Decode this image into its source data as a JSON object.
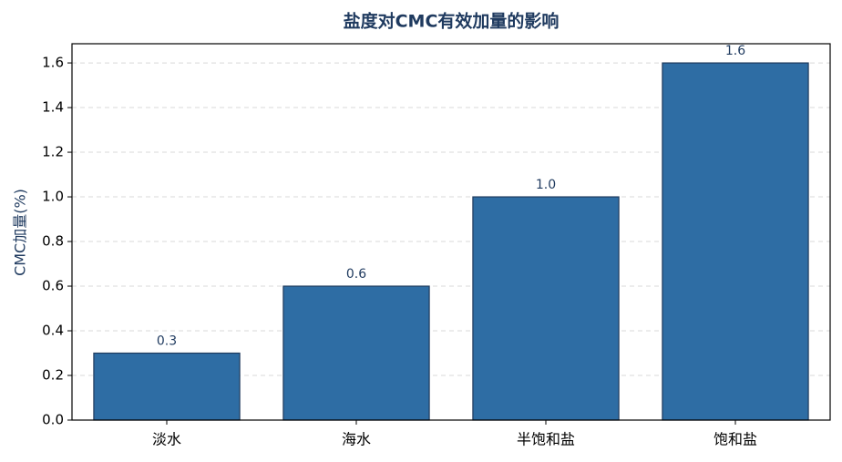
{
  "chart_data": {
    "type": "bar",
    "title": "盐度对CMC有效加量的影响",
    "y_label": "CMC加量(%)",
    "categories": [
      "淡水",
      "海水",
      "半饱和盐",
      "饱和盐"
    ],
    "values": [
      0.3,
      0.6,
      1.0,
      1.6
    ],
    "value_labels": [
      "0.3",
      "0.6",
      "1.0",
      "1.6"
    ],
    "color": "#2e6da4",
    "edge_color": "#1e3a5c",
    "ylim": [
      0,
      1.686
    ],
    "yticks": [
      {
        "value": 0,
        "label": "0.0"
      },
      0.2,
      0.4,
      0.6,
      0.8,
      {
        "value": 1,
        "label": "1.0"
      },
      1.2,
      1.4,
      1.6
    ],
    "grid": true
  }
}
